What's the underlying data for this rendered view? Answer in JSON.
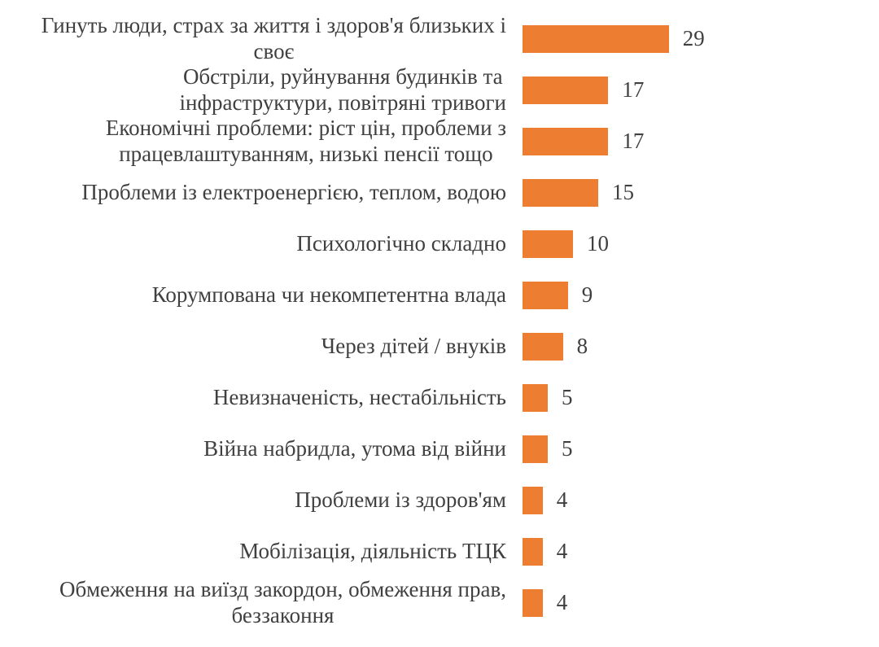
{
  "chart_data": {
    "type": "bar",
    "orientation": "horizontal",
    "title": "",
    "xlabel": "",
    "ylabel": "",
    "categories": [
      "Гинуть люди, страх за життя і здоров'я близьких і\nсвоє",
      "Обстріли, руйнування будинків та\nінфраструктури, повітряні тривоги",
      "Економічні проблеми: ріст цін, проблеми з\nпрацевлаштуванням, низькі пенсії тощо",
      "Проблеми із електроенергією, теплом, водою",
      "Психологічно складно",
      "Корумпована чи некомпетентна влада",
      "Через дітей / внуків",
      "Невизначеність, нестабільність",
      "Війна набридла, утома від війни",
      "Проблеми із здоров'ям",
      "Мобілізація, діяльність ТЦК",
      "Обмеження на виїзд закордон, обмеження прав,\nбеззаконня"
    ],
    "values": [
      29,
      17,
      17,
      15,
      10,
      9,
      8,
      5,
      5,
      4,
      4,
      4
    ],
    "data_labels": [
      29,
      17,
      17,
      15,
      10,
      9,
      8,
      5,
      5,
      4,
      4,
      4
    ],
    "xlim": [
      0,
      46
    ],
    "grid": false,
    "axes_visible": false,
    "legend_position": "none",
    "bar_color": "#ED7D31",
    "text_color": "#404040"
  }
}
